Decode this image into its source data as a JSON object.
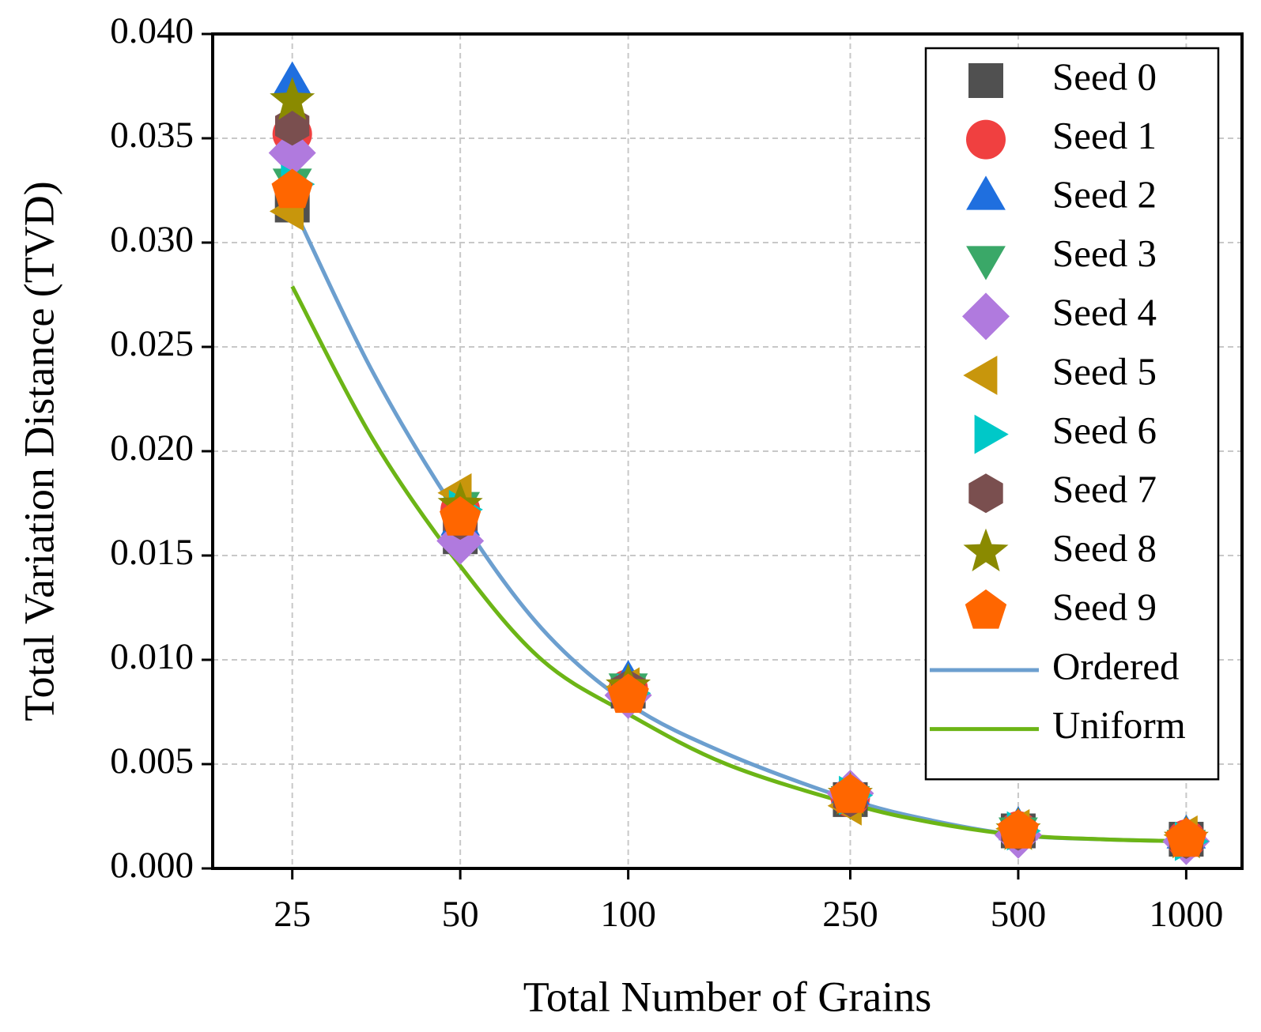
{
  "chart_data": {
    "type": "scatter",
    "xlabel": "Total Number of Grains",
    "ylabel": "Total Variation Distance (TVD)",
    "xscale": "log",
    "xlim": [
      18,
      1259
    ],
    "xticks": [
      25,
      50,
      100,
      250,
      500,
      1000
    ],
    "ylim": [
      0,
      0.04
    ],
    "yticks": [
      {
        "value": 0,
        "label": "0.000"
      },
      {
        "value": 0.005,
        "label": "0.005"
      },
      {
        "value": 0.01,
        "label": "0.010"
      },
      {
        "value": 0.015,
        "label": "0.015"
      },
      {
        "value": 0.02,
        "label": "0.020"
      },
      {
        "value": 0.025,
        "label": "0.025"
      },
      {
        "value": 0.03,
        "label": "0.030"
      },
      {
        "value": 0.035,
        "label": "0.035"
      },
      {
        "value": 0.04,
        "label": "0.040"
      }
    ],
    "grid": true,
    "legend": "upper right",
    "x": [
      25,
      50,
      100,
      250,
      500,
      1000
    ],
    "series": [
      {
        "name": "Seed 0",
        "color": "#505050",
        "marker": "square",
        "values": [
          0.0318,
          0.0159,
          0.0085,
          0.0033,
          0.0018,
          0.0014
        ]
      },
      {
        "name": "Seed 1",
        "color": "#f04040",
        "marker": "circle",
        "values": [
          0.0352,
          0.0172,
          0.0086,
          0.0034,
          0.0018,
          0.0014
        ]
      },
      {
        "name": "Seed 2",
        "color": "#1f6fdf",
        "marker": "triangle-up",
        "values": [
          0.0376,
          0.0165,
          0.0089,
          0.0036,
          0.0019,
          0.0015
        ]
      },
      {
        "name": "Seed 3",
        "color": "#3aa868",
        "marker": "triangle-down",
        "values": [
          0.033,
          0.0175,
          0.0088,
          0.0034,
          0.0019,
          0.0013
        ]
      },
      {
        "name": "Seed 4",
        "color": "#b07ade",
        "marker": "diamond",
        "values": [
          0.0343,
          0.0157,
          0.0083,
          0.0036,
          0.0016,
          0.0013
        ]
      },
      {
        "name": "Seed 5",
        "color": "#c8960c",
        "marker": "triangle-left",
        "values": [
          0.0315,
          0.018,
          0.0087,
          0.003,
          0.0019,
          0.0016
        ]
      },
      {
        "name": "Seed 6",
        "color": "#00c8c8",
        "marker": "triangle-right",
        "values": [
          0.0328,
          0.0172,
          0.0084,
          0.0035,
          0.0018,
          0.0013
        ]
      },
      {
        "name": "Seed 7",
        "color": "#7a4f4f",
        "marker": "hexagon",
        "values": [
          0.0356,
          0.0167,
          0.0086,
          0.0034,
          0.0018,
          0.0014
        ]
      },
      {
        "name": "Seed 8",
        "color": "#8a8a00",
        "marker": "star",
        "values": [
          0.0368,
          0.0174,
          0.0087,
          0.0035,
          0.0018,
          0.0014
        ]
      },
      {
        "name": "Seed 9",
        "color": "#ff6600",
        "marker": "pentagon",
        "values": [
          0.0325,
          0.0168,
          0.0083,
          0.0035,
          0.0018,
          0.0014
        ]
      }
    ],
    "lines": [
      {
        "name": "Ordered",
        "color": "#6c9fcf",
        "x": [
          25,
          35,
          50,
          70,
          100,
          150,
          250,
          350,
          500,
          700,
          1000
        ],
        "values": [
          0.0318,
          0.0237,
          0.0168,
          0.0115,
          0.0079,
          0.0055,
          0.0033,
          0.0023,
          0.0016,
          0.0014,
          0.0013
        ]
      },
      {
        "name": "Uniform",
        "color": "#6cb516",
        "x": [
          25,
          35,
          50,
          70,
          100,
          150,
          250,
          350,
          500,
          700,
          1000
        ],
        "values": [
          0.0279,
          0.0205,
          0.0145,
          0.01,
          0.0074,
          0.005,
          0.0031,
          0.0022,
          0.0016,
          0.0014,
          0.0013
        ]
      }
    ]
  }
}
